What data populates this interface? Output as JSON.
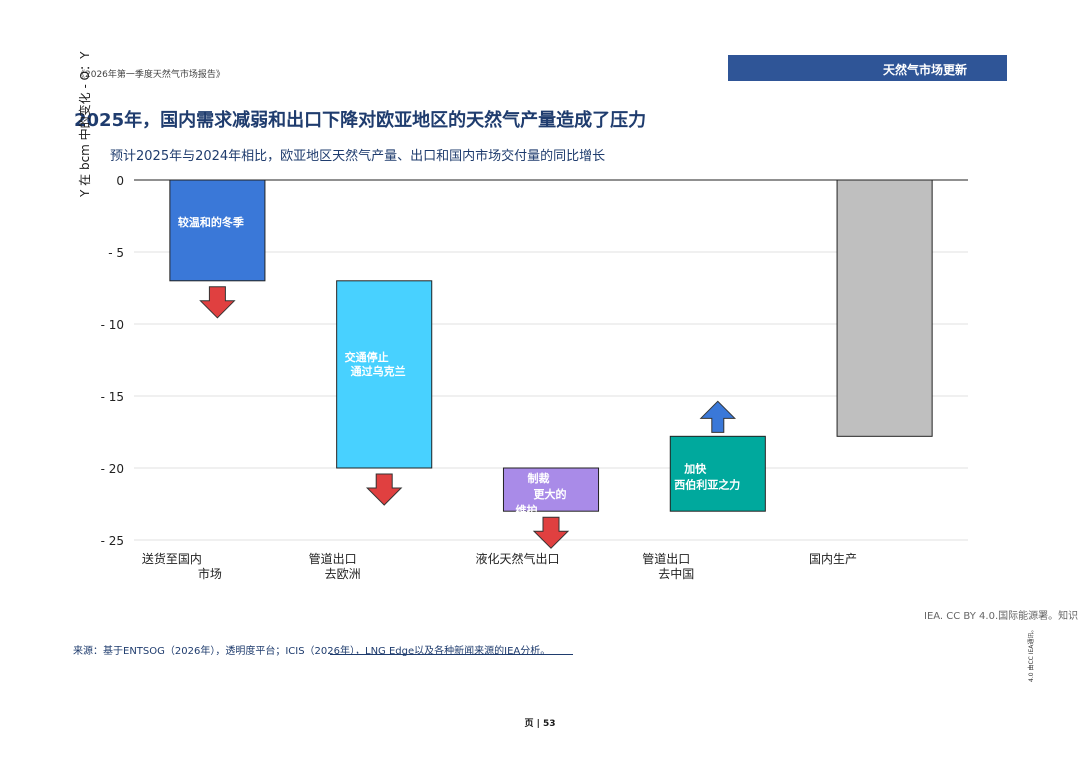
{
  "header": {
    "report_name": "《2026年第一季度天然气市场报告》",
    "section_badge": "天然气市场更新"
  },
  "footer": {
    "attribution": "IEA. CC BY 4.0.国际能源署。知识",
    "source_note": "来源：基于ENTSOG（2026年），透明度平台；ICIS（2026年），LNG Edge以及各种新闻来源的IEA分析。",
    "license_vertical": "4.0 由CC IEA通讯。",
    "page_number": "页 | 53"
  },
  "colors": {
    "title": "#1f3c6e",
    "badge": "#2f5597",
    "arrow_down": "#e04040",
    "arrow_up": "#3a78d8"
  },
  "chart_data": {
    "type": "bar",
    "subtype": "waterfall",
    "title": "2025年，国内需求减弱和出口下降对欧亚地区的天然气产量造成了压力",
    "subtitle": "预计2025年与2024年相比，欧亚地区天然气产量、出口和国内市场交付量的同比增长",
    "ylabel": "Y 在 bcm 中的变化 - O：Y",
    "ylim": [
      -25,
      0
    ],
    "yticks": [
      {
        "value": 0,
        "label": "0"
      },
      {
        "value": -5,
        "label": "- 5"
      },
      {
        "value": -10,
        "label": "- 10"
      },
      {
        "value": -15,
        "label": "- 15"
      },
      {
        "value": -20,
        "label": "- 20"
      },
      {
        "value": -25,
        "label": "- 25"
      }
    ],
    "grid": true,
    "categories": [
      {
        "line1": "送货至国内",
        "line2": "市场"
      },
      {
        "line1": "管道出口",
        "line2": "去欧洲"
      },
      {
        "line1": "液化天然气出口",
        "line2": ""
      },
      {
        "line1": "管道出口",
        "line2": "去中国"
      },
      {
        "line1": "国内生产",
        "line2": ""
      }
    ],
    "bars": [
      {
        "start": 0,
        "end": -7,
        "color": "#3a78d8",
        "annotation": [
          "较温和的冬季"
        ],
        "arrow": "down"
      },
      {
        "start": -7,
        "end": -20,
        "color": "#48d1ff",
        "annotation": [
          "交通停止",
          "通过乌克兰"
        ],
        "arrow": "down"
      },
      {
        "start": -20,
        "end": -23,
        "color": "#a98be8",
        "annotation": [
          "制裁",
          "更大的",
          "维护"
        ],
        "arrow": "down"
      },
      {
        "start": -23,
        "end": -17.8,
        "color": "#00a99d",
        "annotation": [
          "加快",
          "西伯利亚之力"
        ],
        "arrow": "up"
      },
      {
        "start": -17.8,
        "end": 0,
        "color": "#bfbfbf",
        "annotation": [],
        "arrow": ""
      }
    ]
  }
}
